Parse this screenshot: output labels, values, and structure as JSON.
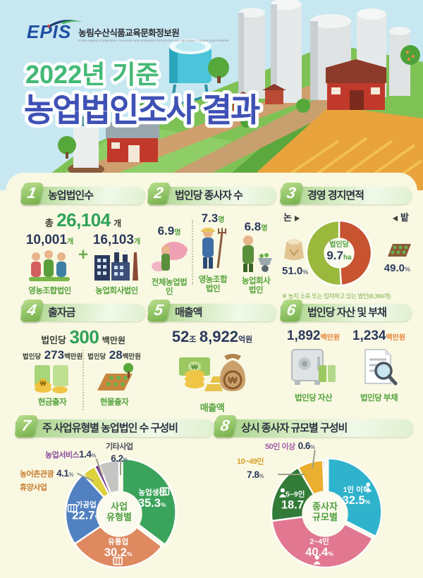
{
  "brand": {
    "logo": "EPIS",
    "org_kr": "농림수산식품교육문화정보원",
    "org_en": "Korea Agency of Education, Promotion and Information Service in Food, Agriculture, Forestry and Fisheries"
  },
  "header": {
    "subtitle": "2022년 기준",
    "title": "농업법인조사 결과"
  },
  "palette": {
    "header_bg": "#c7e7f1",
    "body_bg": "#f9f8e3",
    "subtitle_green": "#45b977",
    "title_indigo": "#3f51b5",
    "accent_green": "#2fa257",
    "navy": "#2b3a5c",
    "label_green": "#55a33c",
    "unit_orange": "#e8853c"
  },
  "units": {
    "percent": "%"
  },
  "sections": {
    "s1": {
      "no": "1",
      "title": "농업법인수",
      "total_prefix": "총",
      "total_value": "26,104",
      "total_unit": "개",
      "plus": "+",
      "items": [
        {
          "value": "10,001",
          "unit": "개",
          "label": "영농조합법인"
        },
        {
          "value": "16,103",
          "unit": "개",
          "label": "농업회사법인"
        }
      ]
    },
    "s2": {
      "no": "2",
      "title": "법인당 종사자 수",
      "items": [
        {
          "value": "6.9",
          "unit": "명",
          "label": "전체농업법인"
        },
        {
          "value": "7.3",
          "unit": "명",
          "label": "영농조합\n법인"
        },
        {
          "value": "6.8",
          "unit": "명",
          "label": "농업회사\n법인"
        }
      ]
    },
    "s3": {
      "no": "3",
      "title": "경영 경지면적",
      "center_label": "법인당",
      "center_value": "9.7",
      "center_unit": "ha",
      "left": {
        "name": "논",
        "pct": "51.0"
      },
      "right": {
        "name": "밭",
        "pct": "49.0"
      },
      "note": "※ 농지 소유 또는 임차하고 있는 법인(8,366개)"
    },
    "s4": {
      "no": "4",
      "title": "출자금",
      "headline_prefix": "법인당",
      "headline_value": "300",
      "headline_unit": "백만원",
      "items": [
        {
          "prefix": "법인당",
          "value": "273",
          "unit": "백만원",
          "label": "현금출자"
        },
        {
          "prefix": "법인당",
          "value": "28",
          "unit": "백만원",
          "label": "현물출자"
        }
      ]
    },
    "s5": {
      "no": "5",
      "title": "매출액",
      "value1": "52",
      "unit1": "조",
      "value2": "8,922",
      "unit2": "억원",
      "label": "매출액"
    },
    "s6": {
      "no": "6",
      "title": "법인당 자산 및 부채",
      "items": [
        {
          "value": "1,892",
          "unit": "백만원",
          "label": "법인당 자산"
        },
        {
          "value": "1,234",
          "unit": "백만원",
          "label": "법인당 부채"
        }
      ]
    },
    "s7": {
      "no": "7",
      "title": "주 사업유형별 농업법인 수 구성비",
      "center_line1": "사업",
      "center_line2": "유형별"
    },
    "s8": {
      "no": "8",
      "title": "상시 종사자 규모별 구성비",
      "center_line1": "종사자",
      "center_line2": "규모별"
    }
  },
  "chart_data": [
    {
      "id": "donut-area",
      "type": "pie",
      "title": "경영 경지면적",
      "center_label": "법인당 9.7ha",
      "legend_position": "sides",
      "slices": [
        {
          "name": "밭",
          "value": 49.0,
          "color": "#c75331",
          "label_pos": "outside"
        },
        {
          "name": "논",
          "value": 51.0,
          "color": "#9ab93c",
          "label_pos": "outside"
        }
      ],
      "hole": 0.47,
      "start_angle": 0,
      "direction": "clockwise"
    },
    {
      "id": "pie-business-type",
      "type": "pie",
      "title": "주 사업유형별 농업법인 수 구성비",
      "center_label": "사업 유형별",
      "explode_index": 0,
      "slices": [
        {
          "name": "농업생산",
          "value": 35.3,
          "color": "#3ba45c",
          "label_pos": "inside",
          "icon": "crate"
        },
        {
          "name": "유통업",
          "value": 30.2,
          "color": "#de8960",
          "label_pos": "inside",
          "icon": "crate"
        },
        {
          "name": "가공업",
          "value": 22.7,
          "color": "#5181c1",
          "label_pos": "inside",
          "icon": "crate"
        },
        {
          "name": "농어촌관광휴양사업",
          "value": 4.1,
          "color": "#ddd13e",
          "label_pos": "outside",
          "label_color": "#c87d2e"
        },
        {
          "name": "농업서비스",
          "value": 1.4,
          "color": "#7c3f8e",
          "label_pos": "outside",
          "label_color": "#8a4a9e"
        },
        {
          "name": "기타사업",
          "value": 6.2,
          "color": "#c4c4c2",
          "label_pos": "outside",
          "label_color": "#4a4f58"
        }
      ],
      "hole": 0.43,
      "start_angle": 0,
      "direction": "clockwise"
    },
    {
      "id": "pie-workers",
      "type": "pie",
      "title": "상시 종사자 규모별 구성비",
      "center_label": "종사자 규모별",
      "explode_index": 0,
      "slices": [
        {
          "name": "1인 이하",
          "value": 32.5,
          "color": "#2fb3cc",
          "label_pos": "inside",
          "icon": "person"
        },
        {
          "name": "2~4인",
          "value": 40.4,
          "color": "#e17790",
          "label_pos": "inside",
          "icon": "person"
        },
        {
          "name": "5~9인",
          "value": 18.7,
          "color": "#337b38",
          "label_pos": "inside",
          "icon": "person"
        },
        {
          "name": "10~49인",
          "value": 7.8,
          "color": "#eaaf2e",
          "label_pos": "outside",
          "label_color": "#d8a02a"
        },
        {
          "name": "50인 이상",
          "value": 0.6,
          "color": "#8a56a0",
          "label_pos": "outside",
          "label_color": "#9f5ba8"
        }
      ],
      "hole": 0.43,
      "start_angle": 0,
      "direction": "clockwise"
    }
  ]
}
